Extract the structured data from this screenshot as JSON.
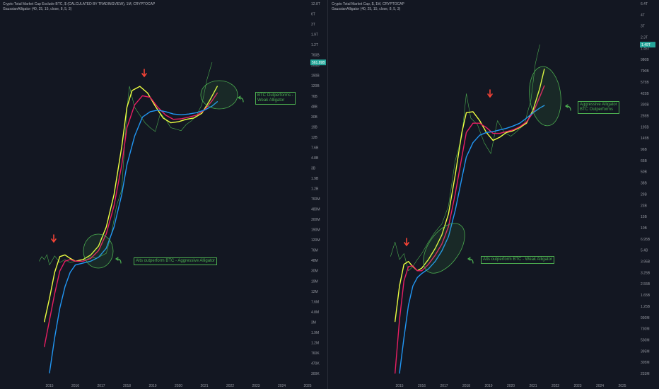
{
  "colors": {
    "background": "#131722",
    "jaw": "#2196f3",
    "teeth": "#e91e63",
    "lips": "#eeff41",
    "price": "#4caf50",
    "arrow": "#f44336",
    "annotation": "#4caf50"
  },
  "chart_data": [
    {
      "type": "line",
      "title": "Crypto Total Market Cap Exclude BTC, $ (CALCULATED BY TRADINGVIEW), 1M, CRYPTOCAP",
      "subtitle": "GaussianAlligator (40, 25, 15, close, 8, 5, 3)",
      "y_scale": "log",
      "y_tick_labels": [
        "12.8T",
        "6T",
        "3T",
        "1.9T",
        "1.2T",
        "760B",
        "500B",
        "190B",
        "120B",
        "76B",
        "48B",
        "30B",
        "19B",
        "12B",
        "7.6B",
        "4.8B",
        "3B",
        "1.9B",
        "1.2B",
        "760M",
        "480M",
        "300M",
        "190M",
        "120M",
        "76M",
        "48M",
        "30M",
        "19M",
        "12M",
        "7.6M",
        "4.8M",
        "3M",
        "1.9M",
        "1.2M",
        "760K",
        "470K",
        "300K"
      ],
      "last_price_label": "561.89B",
      "x_tick_labels": [
        "2015",
        "2016",
        "2017",
        "2018",
        "2019",
        "2020",
        "2021",
        "2022",
        "2023",
        "2024",
        "2025"
      ],
      "x_range": [
        2014.5,
        2025.2
      ],
      "y_range": [
        200000,
        12800000000000
      ],
      "series": [
        {
          "x": [
            2014.6,
            2014.7,
            2014.8,
            2014.9,
            2015.0,
            2015.2,
            2015.4,
            2015.6,
            2015.8,
            2016.0,
            2016.2,
            2016.4,
            2016.6,
            2016.8,
            2017.0,
            2017.2,
            2017.4,
            2017.6,
            2017.8,
            2018.0,
            2018.1,
            2018.3,
            2018.5,
            2018.7,
            2018.9,
            2019.1,
            2019.3,
            2019.5,
            2019.7,
            2019.9,
            2020.1,
            2020.3,
            2020.5,
            2020.7,
            2020.9,
            2021.1,
            2021.3
          ],
          "values": [
            48000000,
            60000000,
            52000000,
            66000000,
            40000000,
            62000000,
            45000000,
            52000000,
            45000000,
            48000000,
            52000000,
            50000000,
            60000000,
            55000000,
            62000000,
            70000000,
            180000000,
            700000000,
            1500000000,
            75000000000,
            220000000000,
            80000000000,
            55000000000,
            38000000000,
            30000000000,
            25000000000,
            60000000000,
            45000000000,
            30000000000,
            28000000000,
            26000000000,
            35000000000,
            42000000000,
            55000000000,
            90000000000,
            300000000000,
            700000000000
          ]
        },
        {
          "x": [
            2014.8,
            2015.0,
            2015.2,
            2015.4,
            2015.6,
            2015.8,
            2016.0,
            2016.3,
            2016.6,
            2016.9,
            2017.2,
            2017.5,
            2017.8,
            2018.0,
            2018.2,
            2018.5,
            2018.8,
            2019.1,
            2019.4,
            2019.7,
            2020.0,
            2020.3,
            2020.6,
            2020.9,
            2021.2,
            2021.5
          ],
          "values": [
            2600000,
            8000000,
            28000000,
            60000000,
            65000000,
            55000000,
            48000000,
            52000000,
            65000000,
            100000000,
            250000000,
            1200000000,
            12000000000,
            80000000000,
            180000000000,
            220000000000,
            160000000000,
            85000000000,
            48000000000,
            38000000000,
            40000000000,
            45000000000,
            48000000000,
            60000000000,
            110000000000,
            220000000000
          ]
        },
        {
          "x": [
            2014.8,
            2015.0,
            2015.2,
            2015.4,
            2015.6,
            2015.8,
            2016.0,
            2016.3,
            2016.6,
            2016.9,
            2017.2,
            2017.5,
            2017.8,
            2018.0,
            2018.3,
            2018.6,
            2018.9,
            2019.2,
            2019.5,
            2019.8,
            2020.1,
            2020.4,
            2020.7,
            2021.0,
            2021.3,
            2021.5
          ],
          "values": [
            780000,
            2800000,
            10000000,
            30000000,
            48000000,
            52000000,
            48000000,
            48000000,
            55000000,
            80000000,
            180000000,
            700000000,
            5000000000,
            30000000000,
            90000000000,
            140000000000,
            130000000000,
            80000000000,
            55000000000,
            45000000000,
            46000000000,
            50000000000,
            55000000000,
            70000000000,
            110000000000,
            160000000000
          ]
        },
        {
          "x": [
            2015.0,
            2015.2,
            2015.4,
            2015.6,
            2015.8,
            2016.0,
            2016.3,
            2016.6,
            2016.9,
            2017.2,
            2017.5,
            2017.8,
            2018.0,
            2018.3,
            2018.6,
            2018.9,
            2019.2,
            2019.5,
            2019.8,
            2020.1,
            2020.4,
            2020.7,
            2021.0,
            2021.3,
            2021.5
          ],
          "values": [
            220000,
            1200000,
            5000000,
            14000000,
            28000000,
            40000000,
            44000000,
            48000000,
            58000000,
            90000000,
            250000000,
            1200000000,
            5000000000,
            20000000000,
            50000000000,
            65000000000,
            70000000000,
            65000000000,
            58000000000,
            56000000000,
            58000000000,
            62000000000,
            70000000000,
            85000000000,
            105000000000
          ]
        }
      ],
      "annotations": [
        {
          "text_lines": [
            "BTC Outperforms -",
            "Weak Alligator"
          ]
        },
        {
          "text_lines": [
            "Alts outperform BTC - Aggressive Alligator"
          ]
        }
      ],
      "highlight_ellipses": 2,
      "red_arrows": 2
    },
    {
      "type": "line",
      "title": "Crypto Total Market Cap, $, 1M, CRYPTOCAP",
      "subtitle": "GaussianAlligator (40, 25, 15, close, 8, 5, 3)",
      "y_scale": "log",
      "y_tick_labels": [
        "6.4T",
        "4T",
        "3T",
        "2.3T",
        "1.45T",
        "980B",
        "790B",
        "575B",
        "425B",
        "330B",
        "255B",
        "195B",
        "145B",
        "96B",
        "66B",
        "50B",
        "38B",
        "29B",
        "23B",
        "15B",
        "10B",
        "6.95B",
        "5.4B",
        "3.95B",
        "3.25B",
        "2.55B",
        "1.65B",
        "1.25B",
        "930M",
        "730M",
        "530M",
        "395M",
        "305M",
        "233M"
      ],
      "last_price_label": "1.49T",
      "x_tick_labels": [
        "2015",
        "2016",
        "2017",
        "2018",
        "2019",
        "2020",
        "2021",
        "2022",
        "2023",
        "2024",
        "2025"
      ],
      "x_range": [
        2014.5,
        2025.2
      ],
      "y_range": [
        210000000,
        8000000000000
      ],
      "series": [
        {
          "x": [
            2014.6,
            2014.8,
            2015.0,
            2015.2,
            2015.4,
            2015.6,
            2015.8,
            2016.0,
            2016.3,
            2016.6,
            2016.9,
            2017.2,
            2017.5,
            2017.8,
            2018.0,
            2018.2,
            2018.5,
            2018.8,
            2019.1,
            2019.4,
            2019.7,
            2020.0,
            2020.3,
            2020.6,
            2020.9,
            2021.1,
            2021.3
          ],
          "values": [
            6000000000,
            9000000000,
            5500000000,
            6500000000,
            4000000000,
            4500000000,
            5500000000,
            6500000000,
            9000000000,
            12000000000,
            15000000000,
            25000000000,
            90000000000,
            180000000000,
            600000000000,
            300000000000,
            250000000000,
            150000000000,
            110000000000,
            280000000000,
            200000000000,
            180000000000,
            210000000000,
            250000000000,
            500000000000,
            1400000000000,
            2400000000000
          ]
        },
        {
          "x": [
            2014.8,
            2015.0,
            2015.2,
            2015.4,
            2015.6,
            2015.8,
            2016.0,
            2016.3,
            2016.6,
            2016.9,
            2017.2,
            2017.5,
            2017.8,
            2018.0,
            2018.3,
            2018.6,
            2018.9,
            2019.2,
            2019.5,
            2019.8,
            2020.1,
            2020.4,
            2020.7,
            2021.0,
            2021.3,
            2021.5
          ],
          "values": [
            950000000,
            2600000000,
            4800000000,
            5200000000,
            4500000000,
            4000000000,
            4300000000,
            5500000000,
            7500000000,
            11000000000,
            20000000000,
            60000000000,
            200000000000,
            350000000000,
            360000000000,
            280000000000,
            200000000000,
            160000000000,
            175000000000,
            200000000000,
            210000000000,
            230000000000,
            260000000000,
            380000000000,
            700000000000,
            1200000000000
          ]
        },
        {
          "x": [
            2014.8,
            2015.0,
            2015.2,
            2015.4,
            2015.6,
            2015.8,
            2016.0,
            2016.3,
            2016.6,
            2016.9,
            2017.2,
            2017.5,
            2017.8,
            2018.0,
            2018.3,
            2018.6,
            2018.9,
            2019.2,
            2019.5,
            2019.8,
            2020.1,
            2020.4,
            2020.7,
            2021.0,
            2021.3,
            2021.5
          ],
          "values": [
            220000000,
            1000000000,
            3000000000,
            4500000000,
            4600000000,
            4000000000,
            4000000000,
            4800000000,
            6200000000,
            8500000000,
            14000000000,
            35000000000,
            100000000000,
            200000000000,
            260000000000,
            260000000000,
            230000000000,
            195000000000,
            195000000000,
            205000000000,
            215000000000,
            235000000000,
            270000000000,
            350000000000,
            550000000000,
            750000000000
          ]
        },
        {
          "x": [
            2015.0,
            2015.2,
            2015.4,
            2015.6,
            2015.8,
            2016.0,
            2016.3,
            2016.6,
            2016.9,
            2017.2,
            2017.5,
            2017.8,
            2018.0,
            2018.3,
            2018.6,
            2018.9,
            2019.2,
            2019.5,
            2019.8,
            2020.1,
            2020.4,
            2020.7,
            2021.0,
            2021.3,
            2021.5
          ],
          "values": [
            220000000,
            600000000,
            1500000000,
            2600000000,
            3300000000,
            3700000000,
            4200000000,
            5200000000,
            7000000000,
            10500000000,
            22000000000,
            55000000000,
            100000000000,
            150000000000,
            185000000000,
            200000000000,
            205000000000,
            215000000000,
            225000000000,
            240000000000,
            260000000000,
            300000000000,
            350000000000,
            400000000000,
            430000000000
          ]
        }
      ],
      "annotations": [
        {
          "text_lines": [
            "Aggressive Alligator",
            "BTC Outperforms"
          ]
        },
        {
          "text_lines": [
            "Alts outperform BTC - Weak Alligator"
          ]
        }
      ],
      "highlight_ellipses": 2,
      "red_arrows": 2
    }
  ]
}
